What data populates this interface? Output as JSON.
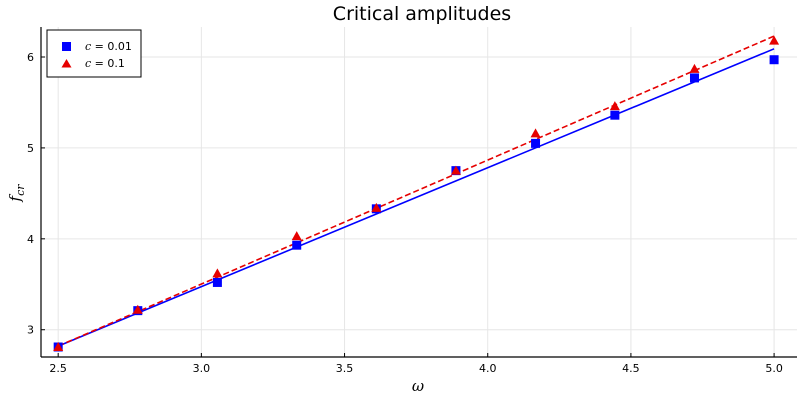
{
  "chart_data": {
    "type": "scatter",
    "title": "Critical amplitudes",
    "xlabel": "ω",
    "ylabel_main": "f",
    "ylabel_sub": "cr",
    "xlim": [
      2.44,
      5.08
    ],
    "ylim": [
      2.7,
      6.33
    ],
    "xticks": [
      2.5,
      3.0,
      3.5,
      4.0,
      4.5,
      5.0
    ],
    "xtick_labels": [
      "2.5",
      "3.0",
      "3.5",
      "4.0",
      "4.5",
      "5.0"
    ],
    "yticks": [
      3,
      4,
      5,
      6
    ],
    "ytick_labels": [
      "3",
      "4",
      "5",
      "6"
    ],
    "grid": true,
    "legend_position": "top-left",
    "series": [
      {
        "name": "c = 0.01",
        "legend_var": "c",
        "legend_value": " = 0.01",
        "color": "#0000ff",
        "marker": "square",
        "x": [
          2.5,
          2.778,
          3.056,
          3.333,
          3.611,
          3.889,
          4.167,
          4.444,
          4.722,
          5.0
        ],
        "y": [
          2.81,
          3.21,
          3.52,
          3.93,
          4.33,
          4.75,
          5.05,
          5.36,
          5.77,
          5.97
        ],
        "fit": {
          "x": [
            2.5,
            5.0
          ],
          "y": [
            2.82,
            6.09
          ],
          "style": "solid"
        }
      },
      {
        "name": "c = 0.1",
        "legend_var": "c",
        "legend_value": " = 0.1",
        "color": "#e60000",
        "marker": "triangle",
        "x": [
          2.5,
          2.778,
          3.056,
          3.333,
          3.611,
          3.889,
          4.167,
          4.444,
          4.722,
          5.0
        ],
        "y": [
          2.81,
          3.22,
          3.62,
          4.03,
          4.34,
          4.75,
          5.16,
          5.46,
          5.87,
          6.18
        ],
        "fit": {
          "x": [
            2.5,
            5.0
          ],
          "y": [
            2.82,
            6.23
          ],
          "style": "dashed"
        }
      }
    ]
  }
}
